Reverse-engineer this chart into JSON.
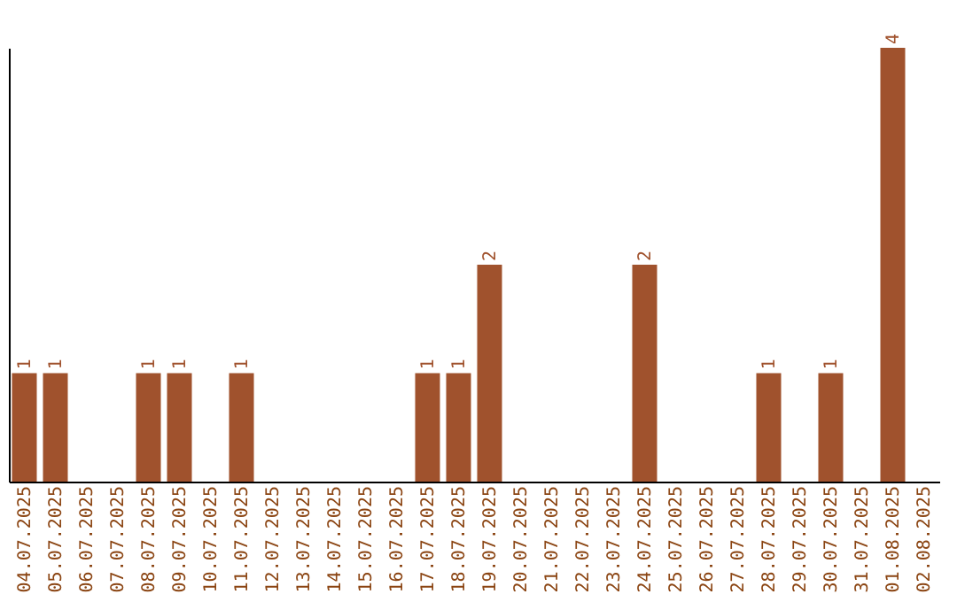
{
  "chart_data": {
    "type": "bar",
    "categories": [
      "04.07.2025",
      "05.07.2025",
      "06.07.2025",
      "07.07.2025",
      "08.07.2025",
      "09.07.2025",
      "10.07.2025",
      "11.07.2025",
      "12.07.2025",
      "13.07.2025",
      "14.07.2025",
      "15.07.2025",
      "16.07.2025",
      "17.07.2025",
      "18.07.2025",
      "19.07.2025",
      "20.07.2025",
      "21.07.2025",
      "22.07.2025",
      "23.07.2025",
      "24.07.2025",
      "25.07.2025",
      "26.07.2025",
      "27.07.2025",
      "28.07.2025",
      "29.07.2025",
      "30.07.2025",
      "31.07.2025",
      "01.08.2025",
      "02.08.2025"
    ],
    "values": [
      1,
      1,
      0,
      0,
      1,
      1,
      0,
      1,
      0,
      0,
      0,
      0,
      0,
      1,
      1,
      2,
      0,
      0,
      0,
      0,
      2,
      0,
      0,
      0,
      1,
      0,
      1,
      0,
      4,
      0
    ],
    "value_labels": [
      "1",
      "1",
      null,
      null,
      "1",
      "1",
      null,
      "1",
      null,
      null,
      null,
      null,
      null,
      "1",
      "1",
      "2",
      null,
      null,
      null,
      null,
      "2",
      null,
      null,
      null,
      "1",
      null,
      "1",
      null,
      "4",
      null
    ],
    "color": "#a0522d",
    "grid": false,
    "tick_labels": "x"
  }
}
